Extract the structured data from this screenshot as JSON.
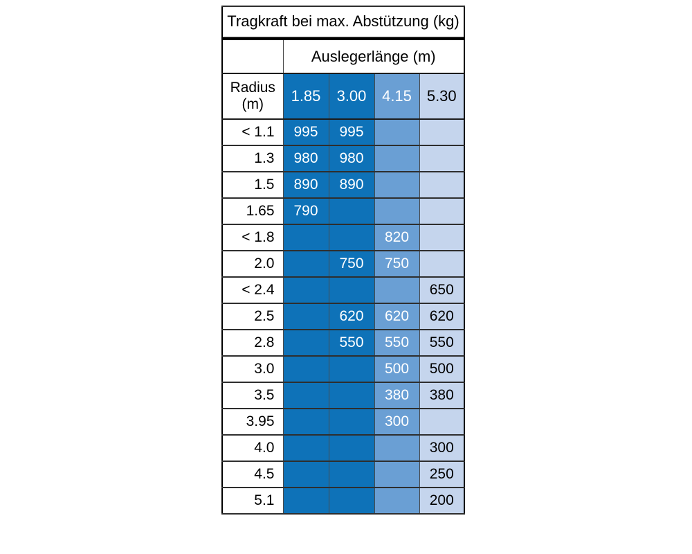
{
  "colors": {
    "dark_blue": "#0E72B8",
    "medium_blue": "#6A9FD4",
    "light_blue": "#C5D5ED",
    "border_outer": "#000000",
    "grid_line": "#3a3a3a"
  },
  "chart_data": {
    "type": "table",
    "title": "Tragkraft bei max. Abstützung (kg)",
    "column_group_label": "Auslegerlänge (m)",
    "row_header": "Radius\n(m)",
    "columns": [
      "1.85",
      "3.00",
      "4.15",
      "5.30"
    ],
    "rows": [
      {
        "radius": "< 1.1",
        "values": [
          "995",
          "995",
          "",
          ""
        ]
      },
      {
        "radius": "1.3",
        "values": [
          "980",
          "980",
          "",
          ""
        ]
      },
      {
        "radius": "1.5",
        "values": [
          "890",
          "890",
          "",
          ""
        ]
      },
      {
        "radius": "1.65",
        "values": [
          "790",
          "",
          "",
          ""
        ]
      },
      {
        "radius": "< 1.8",
        "values": [
          "",
          "",
          "820",
          ""
        ]
      },
      {
        "radius": "2.0",
        "values": [
          "",
          "750",
          "750",
          ""
        ]
      },
      {
        "radius": "< 2.4",
        "values": [
          "",
          "",
          "",
          "650"
        ]
      },
      {
        "radius": "2.5",
        "values": [
          "",
          "620",
          "620",
          "620"
        ]
      },
      {
        "radius": "2.8",
        "values": [
          "",
          "550",
          "550",
          "550"
        ]
      },
      {
        "radius": "3.0",
        "values": [
          "",
          "",
          "500",
          "500"
        ]
      },
      {
        "radius": "3.5",
        "values": [
          "",
          "",
          "380",
          "380"
        ]
      },
      {
        "radius": "3.95",
        "values": [
          "",
          "",
          "300",
          ""
        ]
      },
      {
        "radius": "4.0",
        "values": [
          "",
          "",
          "",
          "300"
        ]
      },
      {
        "radius": "4.5",
        "values": [
          "",
          "",
          "",
          "250"
        ]
      },
      {
        "radius": "5.1",
        "values": [
          "",
          "",
          "",
          "200"
        ]
      }
    ],
    "column_styles": [
      "dark",
      "dark",
      "medium",
      "light"
    ]
  }
}
